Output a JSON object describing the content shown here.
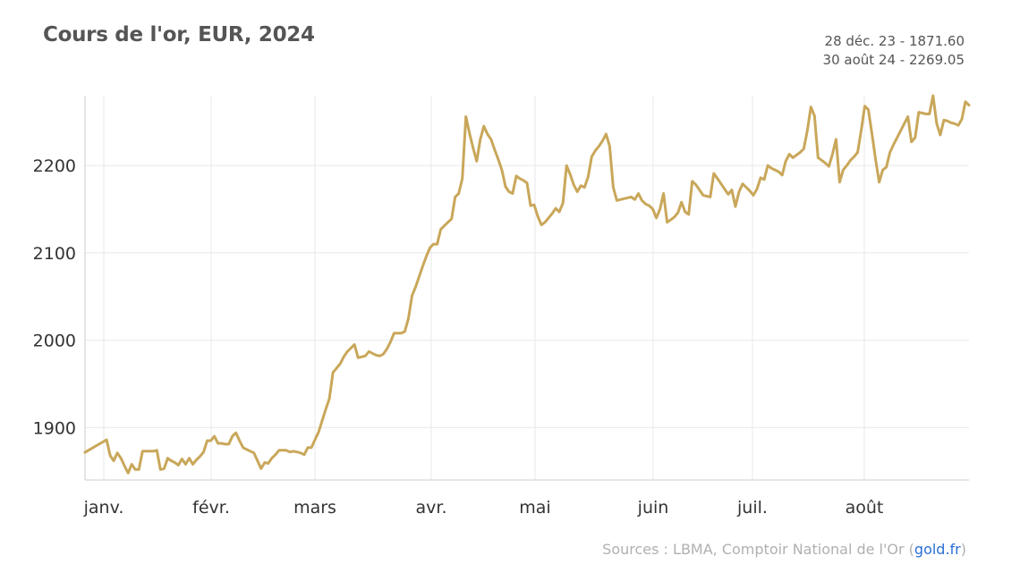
{
  "chart_data": {
    "type": "line",
    "title": "Cours de l'or, EUR, 2024",
    "range_start": "28 déc. 23 - 1871.60",
    "range_end": "30 août 24 - 2269.05",
    "xlabel": "",
    "ylabel": "",
    "categories": [
      "janv.",
      "févr.",
      "mars",
      "avr.",
      "mai",
      "juin",
      "juil.",
      "août"
    ],
    "yticks": [
      1900,
      2000,
      2100,
      2200
    ],
    "ylim": [
      1840,
      2280
    ],
    "xlim": [
      0,
      246
    ],
    "grid": true,
    "line_color": "#c9a75a",
    "series": [
      {
        "name": "EUR",
        "x": [
          0,
          6,
          7,
          8,
          9,
          10,
          11,
          12,
          13,
          14,
          15,
          16,
          17,
          18,
          19,
          20,
          21,
          22,
          23,
          24,
          25,
          26,
          27,
          28,
          29,
          30,
          31,
          32,
          33,
          34,
          35,
          36,
          37,
          38,
          39,
          40,
          41,
          42,
          43,
          44,
          45,
          46,
          47,
          48,
          49,
          50,
          51,
          52,
          53,
          54,
          55,
          56,
          57,
          58,
          59,
          60,
          61,
          62,
          63,
          64,
          65,
          66,
          67,
          68,
          69,
          70,
          71,
          72,
          73,
          74,
          75,
          76,
          77,
          78,
          79,
          80,
          81,
          82,
          83,
          84,
          85,
          86,
          87,
          88,
          89,
          90,
          91,
          92,
          93,
          94,
          95,
          96,
          97,
          98,
          99,
          100,
          101,
          102,
          103,
          104,
          105,
          106,
          107,
          108,
          109,
          110,
          111,
          112,
          113,
          114,
          115,
          116,
          117,
          118,
          119,
          120,
          121,
          122,
          123,
          124,
          125,
          126,
          127,
          128,
          129,
          130,
          131,
          132,
          133,
          134,
          135,
          136,
          137,
          138,
          139,
          140,
          141,
          142,
          143,
          144,
          145,
          146,
          147,
          148,
          149,
          150,
          151,
          152,
          153,
          154,
          155,
          156,
          157,
          158,
          159,
          160,
          161,
          162,
          163,
          164,
          165,
          166,
          167,
          168,
          169,
          170,
          171,
          172,
          173,
          174,
          175,
          176,
          177,
          178,
          179,
          180,
          181,
          182,
          183,
          184,
          185,
          186,
          187,
          188,
          189,
          190,
          191,
          192,
          193,
          194,
          195,
          196,
          197,
          198,
          199,
          200,
          201,
          202,
          203,
          204,
          205,
          206,
          207,
          208,
          209,
          210,
          211,
          212,
          213,
          214,
          215,
          216,
          217,
          218,
          219,
          220,
          221,
          222,
          223,
          224,
          225,
          226,
          227,
          228,
          229,
          230,
          231,
          232,
          233,
          234,
          235,
          236,
          237,
          238,
          239,
          240,
          241,
          242,
          243,
          244,
          245,
          246
        ],
        "values": [
          1871.6,
          1886,
          1868,
          1862,
          1871,
          1865,
          1856,
          1848,
          1858,
          1852,
          1852,
          1873,
          1873,
          1873,
          1873,
          1874,
          1852,
          1853,
          1865,
          1862,
          1860,
          1857,
          1864,
          1858,
          1865,
          1858,
          1863,
          1867,
          1872,
          1885,
          1885,
          1890,
          1882,
          1882,
          1881,
          1881,
          1890,
          1894,
          1885,
          1877,
          1875,
          1873,
          1871,
          1862,
          1853,
          1860,
          1859,
          1865,
          1869,
          1874,
          1874,
          1874,
          1872,
          1873,
          1872,
          1871,
          1869,
          1877,
          1877,
          1886,
          1895,
          1908,
          1921,
          1933,
          1963,
          1968,
          1973,
          1981,
          1987,
          1991,
          1995,
          1980,
          1981,
          1982,
          1987,
          1985,
          1983,
          1982,
          1984,
          1990,
          1998,
          2008,
          2008,
          2008,
          2010,
          2025,
          2051,
          2061,
          2073,
          2085,
          2096,
          2106,
          2110,
          2110,
          2127,
          2131,
          2135,
          2139,
          2164,
          2168,
          2185,
          2256,
          2237,
          2220,
          2205,
          2230,
          2245,
          2236,
          2230,
          2218,
          2207,
          2195,
          2176,
          2170,
          2168,
          2188,
          2185,
          2183,
          2180,
          2154,
          2155,
          2142,
          2132,
          2135,
          2140,
          2145,
          2151,
          2147,
          2157,
          2200,
          2190,
          2178,
          2170,
          2177,
          2175,
          2187,
          2210,
          2217,
          2222,
          2228,
          2236,
          2222,
          2175,
          2160,
          2161,
          2162,
          2163,
          2164,
          2161,
          2168,
          2160,
          2156,
          2154,
          2150,
          2140,
          2150,
          2168,
          2135,
          2138,
          2141,
          2146,
          2158,
          2147,
          2144,
          2182,
          2178,
          2172,
          2166,
          2165,
          2164,
          2191,
          2185,
          2179,
          2173,
          2167,
          2172,
          2153,
          2170,
          2179,
          2175,
          2171,
          2166,
          2173,
          2186,
          2184,
          2200,
          2197,
          2195,
          2193,
          2189,
          2205,
          2213,
          2209,
          2212,
          2215,
          2219,
          2240,
          2267,
          2257,
          2209,
          2206,
          2203,
          2199,
          2213,
          2230,
          2181,
          2195,
          2200,
          2206,
          2210,
          2215,
          2240,
          2268,
          2264,
          2236,
          2207,
          2181,
          2195,
          2198,
          2215,
          2224,
          2232,
          2240,
          2248,
          2256,
          2227,
          2232,
          2261,
          2260,
          2259,
          2259,
          2280,
          2248,
          2235,
          2252,
          2251,
          2249,
          2248,
          2246,
          2253,
          2273,
          2269.05
        ]
      }
    ]
  },
  "source": {
    "prefix": "Sources : LBMA, Comptoir National de l'Or (",
    "link_text": "gold.fr",
    "suffix": ")"
  }
}
